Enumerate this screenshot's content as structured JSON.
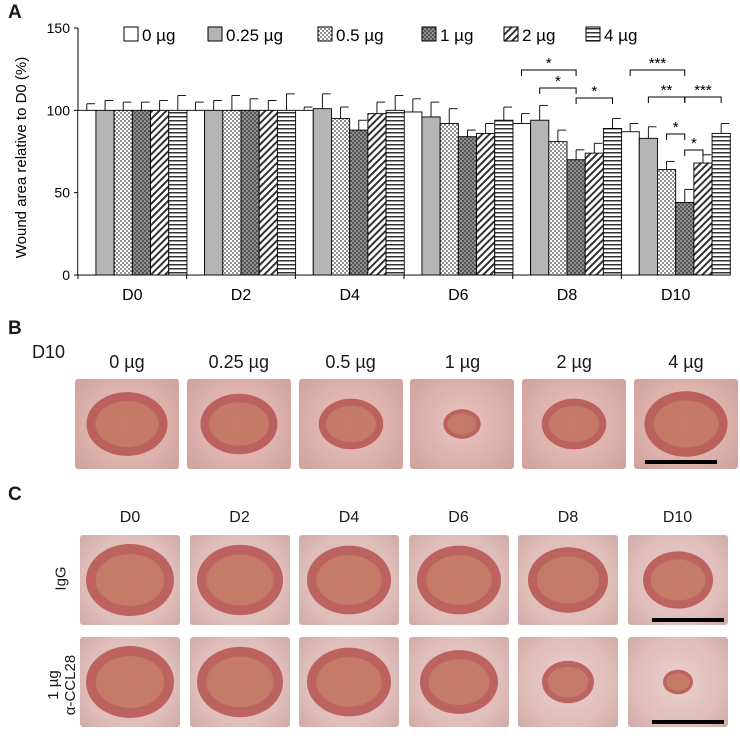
{
  "panels": {
    "a": "A",
    "b": "B",
    "c": "C"
  },
  "chart_data": {
    "type": "bar",
    "categories": [
      "D0",
      "D2",
      "D4",
      "D6",
      "D8",
      "D10"
    ],
    "ylabel": "Wound area relative to D0 (%)",
    "ylim": [
      0,
      150
    ],
    "yticks": [
      "0",
      "50",
      "100",
      "150"
    ],
    "legend_position": "top",
    "series": [
      {
        "name": "0 µg",
        "pattern": "white",
        "values": [
          100,
          100,
          100,
          99,
          92,
          87
        ],
        "errors": [
          4,
          5,
          2,
          8,
          6,
          5
        ]
      },
      {
        "name": "0.25 µg",
        "pattern": "gray",
        "values": [
          100,
          100,
          101,
          96,
          94,
          83
        ],
        "errors": [
          6,
          6,
          9,
          9,
          9,
          7
        ]
      },
      {
        "name": "0.5 µg",
        "pattern": "dots",
        "values": [
          100,
          100,
          95,
          92,
          81,
          64
        ],
        "errors": [
          5,
          9,
          7,
          9,
          7,
          5
        ]
      },
      {
        "name": "1 µg",
        "pattern": "darkdots",
        "values": [
          100,
          100,
          88,
          84,
          70,
          44
        ],
        "errors": [
          5,
          7,
          6,
          4,
          6,
          8
        ]
      },
      {
        "name": "2 µg",
        "pattern": "diagonal",
        "values": [
          100,
          100,
          98,
          86,
          74,
          68
        ],
        "errors": [
          6,
          6,
          7,
          6,
          6,
          5
        ]
      },
      {
        "name": "4 µg",
        "pattern": "horizontal",
        "values": [
          100,
          100,
          100,
          94,
          89,
          86
        ],
        "errors": [
          9,
          10,
          9,
          8,
          6,
          6
        ]
      }
    ],
    "significance": [
      {
        "group": "D8",
        "from": 0,
        "to": 3,
        "label": "*",
        "level": 0
      },
      {
        "group": "D8",
        "from": 1,
        "to": 3,
        "label": "*",
        "level": 1
      },
      {
        "group": "D8",
        "from": 3,
        "to": 5,
        "label": "*",
        "level": 2
      },
      {
        "group": "D10",
        "from": 0,
        "to": 3,
        "label": "***",
        "level": 0
      },
      {
        "group": "D10",
        "from": 1,
        "to": 3,
        "label": "**",
        "level": 1
      },
      {
        "group": "D10",
        "from": 3,
        "to": 5,
        "label": "***",
        "level": 1
      },
      {
        "group": "D10",
        "from": 2,
        "to": 3,
        "label": "*",
        "level": 2
      },
      {
        "group": "D10",
        "from": 3,
        "to": 4,
        "label": "*",
        "level": 3
      }
    ]
  },
  "panel_b": {
    "row_label": "D10",
    "doses": [
      "0 µg",
      "0.25 µg",
      "0.5 µg",
      "1 µg",
      "2 µg",
      "4 µg"
    ],
    "wound_sizes": [
      0.78,
      0.74,
      0.62,
      0.36,
      0.62,
      0.8
    ]
  },
  "panel_c": {
    "days": [
      "D0",
      "D2",
      "D4",
      "D6",
      "D8",
      "D10"
    ],
    "rows": [
      {
        "label": "IgG",
        "wound_sizes": [
          0.88,
          0.86,
          0.84,
          0.84,
          0.8,
          0.7
        ]
      },
      {
        "label_line1": "1 µg",
        "label_line2": "α-CCL28",
        "wound_sizes": [
          0.88,
          0.86,
          0.84,
          0.78,
          0.52,
          0.3
        ]
      }
    ]
  }
}
